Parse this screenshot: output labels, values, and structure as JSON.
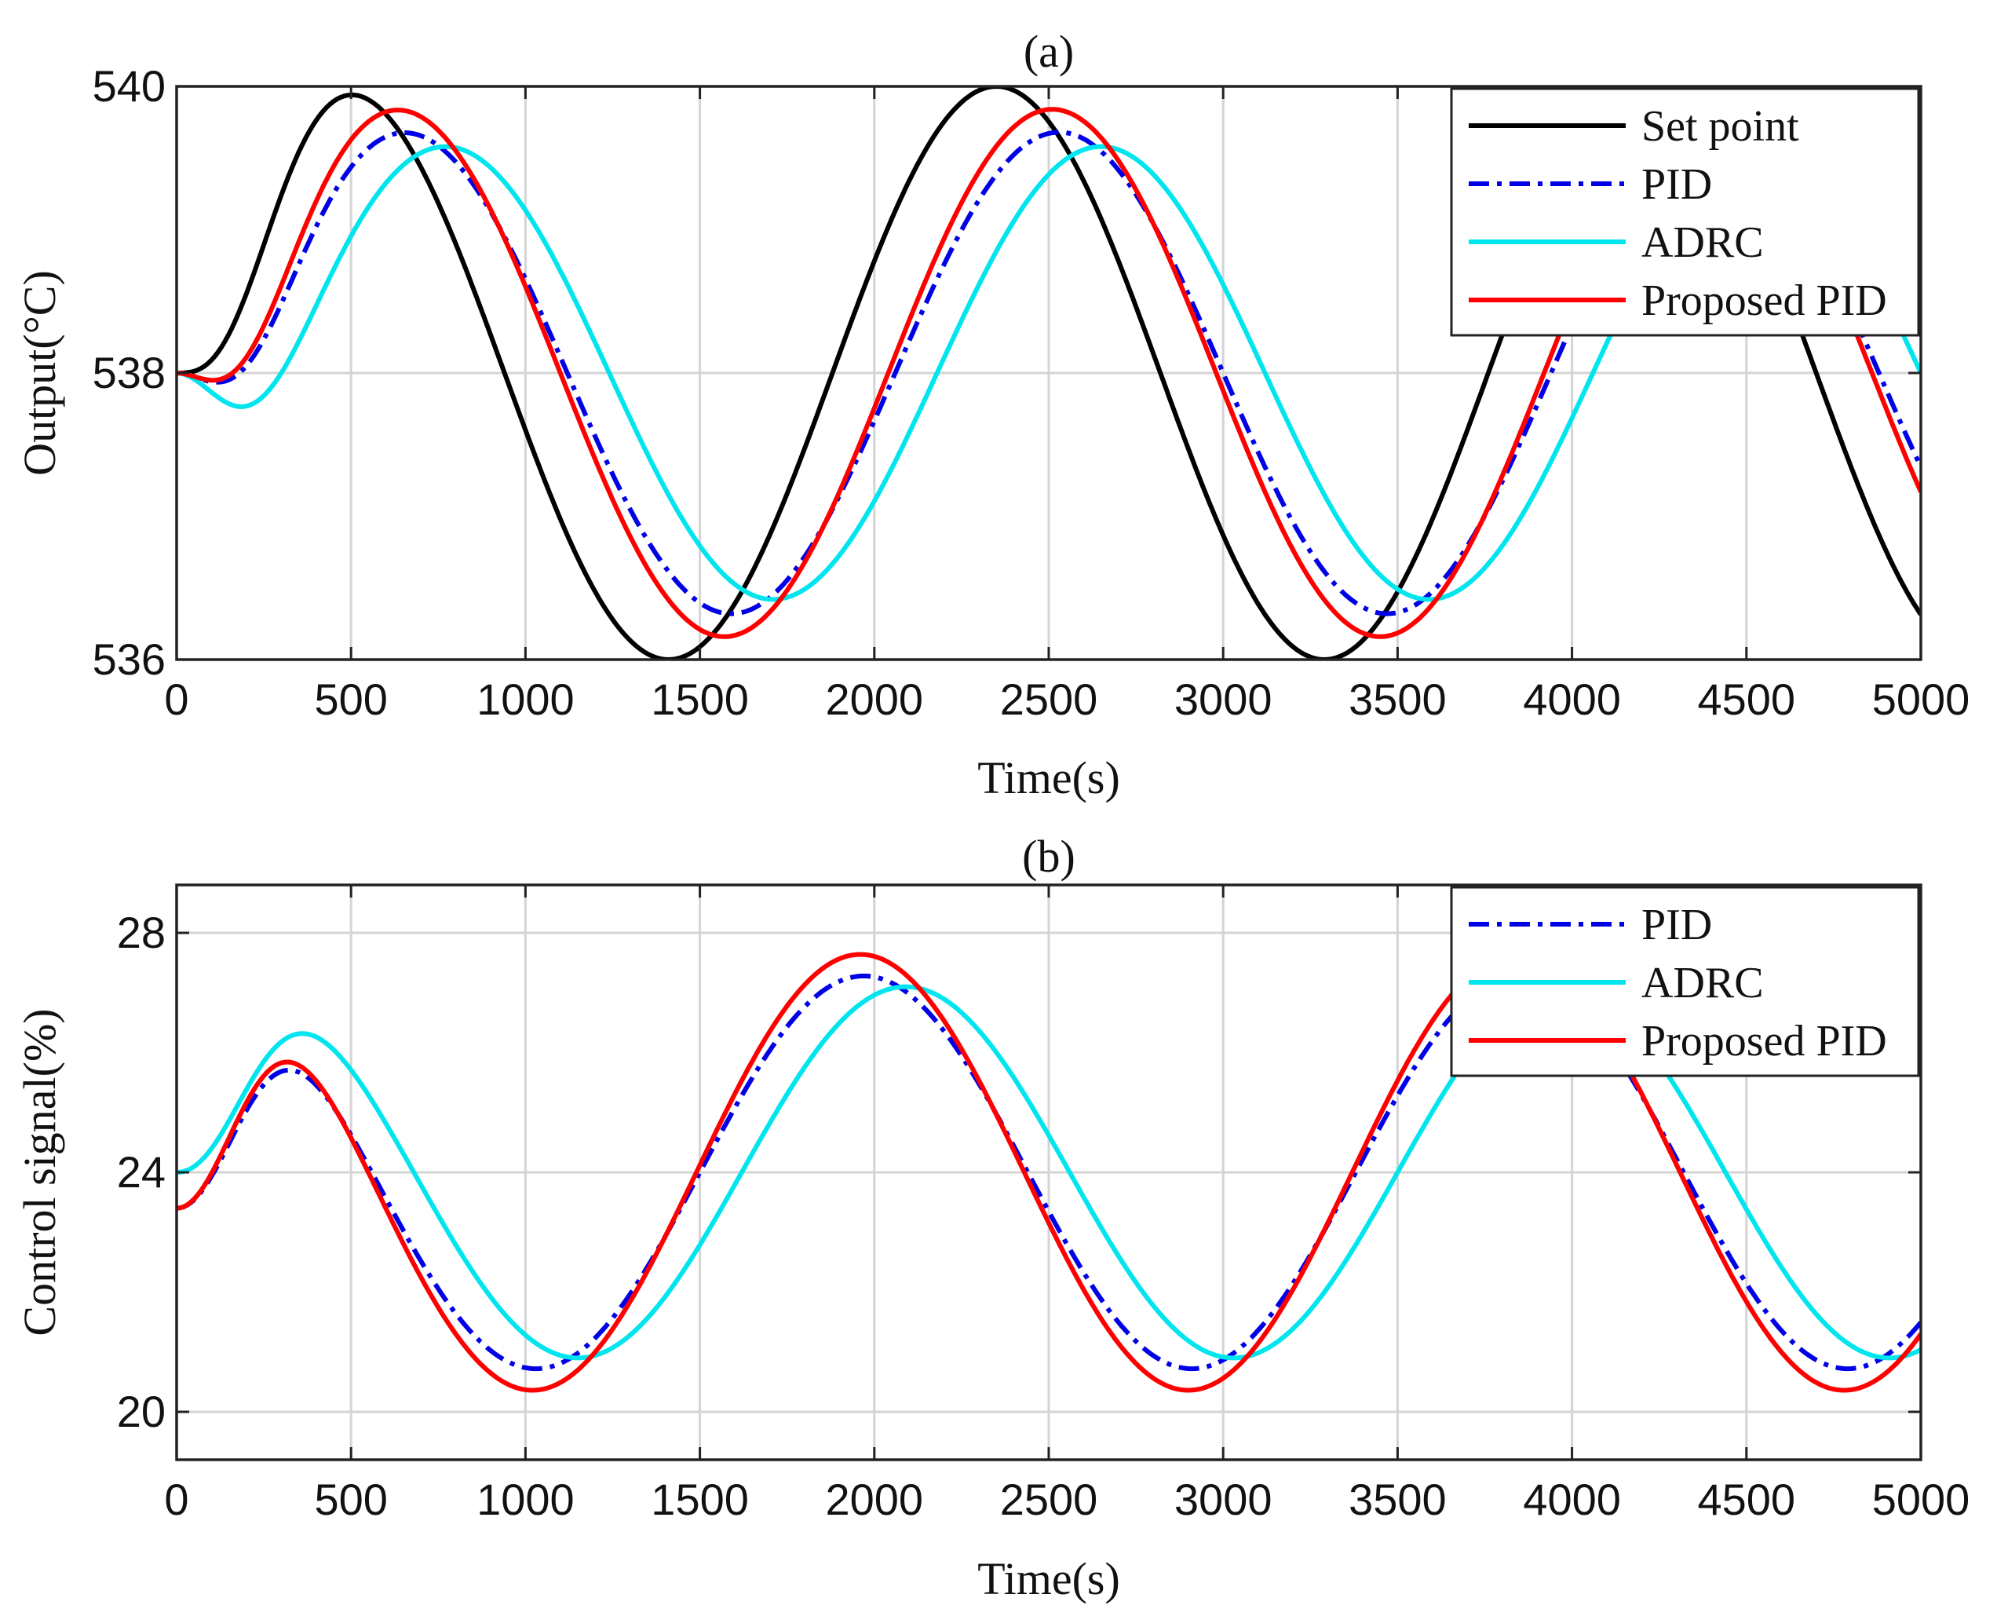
{
  "chart_data": [
    {
      "id": "a",
      "type": "line",
      "title": "(a)",
      "xlabel": "Time(s)",
      "ylabel": "Output(°C)",
      "xlim": [
        0,
        5000
      ],
      "ylim": [
        536,
        540
      ],
      "xticks": [
        0,
        500,
        1000,
        1500,
        2000,
        2500,
        3000,
        3500,
        4000,
        4500,
        5000
      ],
      "yticks": [
        536,
        538,
        540
      ],
      "grid": true,
      "legend_position": "top-right",
      "series": [
        {
          "name": "Set point",
          "color": "#000000",
          "style": "solid",
          "model": "sine",
          "mean": 538,
          "amplitude": 2.0,
          "period": 1880,
          "delay": 0,
          "start": 538
        },
        {
          "name": "PID",
          "color": "#0000e6",
          "style": "dashdot",
          "model": "sine",
          "mean": 538,
          "amplitude": 1.68,
          "period": 1880,
          "delay": 180,
          "start": 538
        },
        {
          "name": "ADRC",
          "color": "#00e5ee",
          "style": "solid",
          "model": "sine",
          "mean": 538,
          "amplitude": 1.58,
          "period": 1880,
          "delay": 300,
          "start": 538
        },
        {
          "name": "Proposed PID",
          "color": "#ff0000",
          "style": "solid",
          "model": "sine",
          "mean": 538,
          "amplitude": 1.84,
          "period": 1880,
          "delay": 160,
          "start": 538
        }
      ]
    },
    {
      "id": "b",
      "type": "line",
      "title": "(b)",
      "xlabel": "Time(s)",
      "ylabel": "Control signal(%)",
      "xlim": [
        0,
        5000
      ],
      "ylim": [
        19.2,
        28.8
      ],
      "xticks": [
        0,
        500,
        1000,
        1500,
        2000,
        2500,
        3000,
        3500,
        4000,
        4500,
        5000
      ],
      "yticks": [
        20,
        24,
        28
      ],
      "grid": true,
      "legend_position": "top-right",
      "series": [
        {
          "name": "PID",
          "color": "#0000e6",
          "style": "dashdot",
          "model": "sine",
          "mean": 24.0,
          "amplitude": 3.28,
          "period": 1880,
          "delay": 1500,
          "start": 23.4
        },
        {
          "name": "ADRC",
          "color": "#00e5ee",
          "style": "solid",
          "model": "sine",
          "mean": 24.0,
          "amplitude": 3.1,
          "period": 1880,
          "delay": 1620,
          "start": 24.0
        },
        {
          "name": "Proposed PID",
          "color": "#ff0000",
          "style": "solid",
          "model": "sine",
          "mean": 24.0,
          "amplitude": 3.64,
          "period": 1880,
          "delay": 1490,
          "start": 23.4
        }
      ]
    }
  ]
}
